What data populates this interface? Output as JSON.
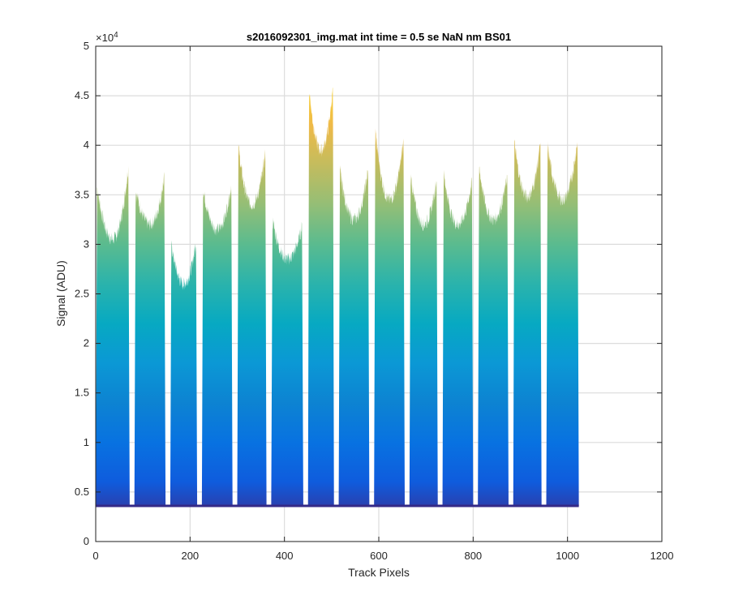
{
  "chart_data": {
    "type": "area",
    "title": "s2016092301_img.mat int time = 0.5 se  NaN nm BS01",
    "xlabel": "Track Pixels",
    "ylabel": "Signal (ADU)",
    "xlim": [
      0,
      1200
    ],
    "ylim": [
      0,
      50000
    ],
    "xticks": [
      0,
      200,
      400,
      600,
      800,
      1000,
      1200
    ],
    "xtick_labels": [
      "0",
      "200",
      "400",
      "600",
      "800",
      "1000",
      "1200"
    ],
    "yticks": [
      0,
      5000,
      10000,
      15000,
      20000,
      25000,
      30000,
      35000,
      40000,
      45000,
      50000
    ],
    "ytick_labels": [
      "0",
      "0.5",
      "1",
      "1.5",
      "2",
      "2.5",
      "3",
      "3.5",
      "4",
      "4.5",
      "5"
    ],
    "y_exponent_base": "×10",
    "y_exponent_power": "4",
    "grid": true,
    "colormap": "parula",
    "colors": {
      "low": "#352a87",
      "mid": "#0fa8d4",
      "high": "#f9fb0e"
    },
    "baseline": 3600,
    "x_max_data": 1024,
    "segments": [
      {
        "x_start": 0,
        "x_end": 72,
        "left_peak": 35800,
        "trough": 30500,
        "right_peak": 37800
      },
      {
        "x_start": 82,
        "x_end": 148,
        "left_peak": 35600,
        "trough": 32000,
        "right_peak": 36800
      },
      {
        "x_start": 158,
        "x_end": 215,
        "left_peak": 30000,
        "trough": 26000,
        "right_peak": 30300
      },
      {
        "x_start": 225,
        "x_end": 290,
        "left_peak": 35600,
        "trough": 31500,
        "right_peak": 36000
      },
      {
        "x_start": 300,
        "x_end": 362,
        "left_peak": 39800,
        "trough": 34000,
        "right_peak": 39200
      },
      {
        "x_start": 372,
        "x_end": 440,
        "left_peak": 32500,
        "trough": 28500,
        "right_peak": 31800
      },
      {
        "x_start": 450,
        "x_end": 505,
        "left_peak": 45800,
        "trough": 39500,
        "right_peak": 45800
      },
      {
        "x_start": 515,
        "x_end": 580,
        "left_peak": 37500,
        "trough": 32500,
        "right_peak": 37600
      },
      {
        "x_start": 590,
        "x_end": 655,
        "left_peak": 41500,
        "trough": 34500,
        "right_peak": 40500
      },
      {
        "x_start": 665,
        "x_end": 725,
        "left_peak": 37000,
        "trough": 32000,
        "right_peak": 36600
      },
      {
        "x_start": 735,
        "x_end": 800,
        "left_peak": 37200,
        "trough": 32000,
        "right_peak": 36400
      },
      {
        "x_start": 810,
        "x_end": 875,
        "left_peak": 37800,
        "trough": 32500,
        "right_peak": 37000
      },
      {
        "x_start": 885,
        "x_end": 945,
        "left_peak": 40300,
        "trough": 34800,
        "right_peak": 40200
      },
      {
        "x_start": 955,
        "x_end": 1024,
        "left_peak": 39900,
        "trough": 34500,
        "right_peak": 40500
      }
    ]
  }
}
